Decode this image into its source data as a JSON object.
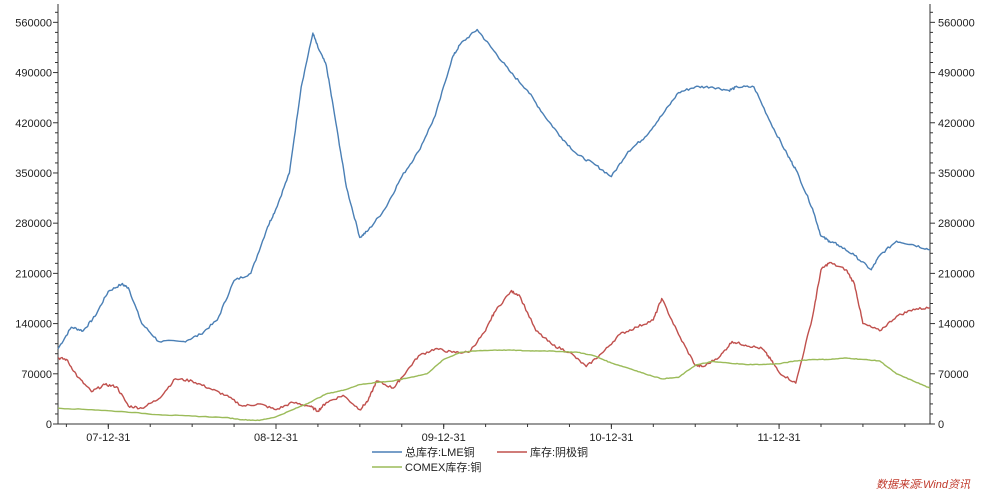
{
  "chart_data": {
    "type": "line",
    "title": "",
    "xlabel": "",
    "ylabel": "",
    "ylim": [
      0,
      580000
    ],
    "y_ticks": [
      0,
      70000,
      140000,
      210000,
      280000,
      350000,
      420000,
      490000,
      560000
    ],
    "x_ticks": [
      "07-12-31",
      "08-12-31",
      "09-12-31",
      "10-12-31",
      "11-12-31"
    ],
    "x_tick_positions": [
      2007.0,
      2008.0,
      2009.0,
      2010.0,
      2011.0
    ],
    "xlim": [
      2006.7,
      2011.9
    ],
    "grid": false,
    "legend_position": "bottom-center",
    "dual_axis": true,
    "series": [
      {
        "name": "总库存:LME铜",
        "color": "#4a7fb5",
        "x": [
          2006.7,
          2006.78,
          2006.85,
          2006.92,
          2007.0,
          2007.08,
          2007.12,
          2007.2,
          2007.3,
          2007.45,
          2007.55,
          2007.65,
          2007.75,
          2007.85,
          2007.95,
          2008.0,
          2008.08,
          2008.15,
          2008.22,
          2008.25,
          2008.3,
          2008.35,
          2008.42,
          2008.5,
          2008.55,
          2008.65,
          2008.75,
          2008.85,
          2008.95,
          2009.05,
          2009.1,
          2009.2,
          2009.3,
          2009.4,
          2009.5,
          2009.6,
          2009.7,
          2009.8,
          2009.9,
          2010.0,
          2010.1,
          2010.2,
          2010.3,
          2010.4,
          2010.5,
          2010.6,
          2010.7,
          2010.75,
          2010.85,
          2010.95,
          2011.05,
          2011.1,
          2011.2,
          2011.25,
          2011.3,
          2011.35,
          2011.45,
          2011.55,
          2011.6,
          2011.7,
          2011.8,
          2011.9
        ],
        "values": [
          105000,
          135000,
          130000,
          150000,
          185000,
          195000,
          190000,
          140000,
          115000,
          115000,
          125000,
          145000,
          200000,
          210000,
          275000,
          300000,
          350000,
          470000,
          545000,
          525000,
          500000,
          430000,
          330000,
          260000,
          270000,
          300000,
          345000,
          380000,
          430000,
          510000,
          530000,
          550000,
          520000,
          490000,
          465000,
          430000,
          400000,
          375000,
          362000,
          345000,
          380000,
          400000,
          430000,
          462000,
          470000,
          470000,
          465000,
          470000,
          470000,
          420000,
          375000,
          355000,
          300000,
          262000,
          255000,
          250000,
          235000,
          215000,
          235000,
          255000,
          250000,
          243000
        ]
      },
      {
        "name": "库存:阴极铜",
        "color": "#c0504d",
        "x": [
          2006.7,
          2006.75,
          2006.82,
          2006.9,
          2006.98,
          2007.05,
          2007.12,
          2007.2,
          2007.3,
          2007.4,
          2007.5,
          2007.6,
          2007.7,
          2007.8,
          2007.9,
          2008.0,
          2008.1,
          2008.2,
          2008.25,
          2008.3,
          2008.4,
          2008.5,
          2008.55,
          2008.6,
          2008.7,
          2008.75,
          2008.85,
          2008.95,
          2009.05,
          2009.15,
          2009.25,
          2009.3,
          2009.4,
          2009.45,
          2009.55,
          2009.65,
          2009.75,
          2009.85,
          2009.95,
          2010.05,
          2010.15,
          2010.25,
          2010.3,
          2010.4,
          2010.5,
          2010.55,
          2010.65,
          2010.72,
          2010.8,
          2010.9,
          2010.95,
          2011.0,
          2011.1,
          2011.2,
          2011.25,
          2011.3,
          2011.4,
          2011.45,
          2011.5,
          2011.6,
          2011.7,
          2011.8,
          2011.9
        ],
        "values": [
          92000,
          90000,
          65000,
          45000,
          55000,
          52000,
          25000,
          22000,
          35000,
          63000,
          60000,
          50000,
          40000,
          25000,
          28000,
          20000,
          30000,
          25000,
          18000,
          30000,
          40000,
          20000,
          33000,
          60000,
          50000,
          65000,
          95000,
          105000,
          100000,
          100000,
          130000,
          155000,
          185000,
          180000,
          130000,
          110000,
          100000,
          80000,
          100000,
          125000,
          135000,
          145000,
          175000,
          125000,
          82000,
          80000,
          95000,
          115000,
          110000,
          105000,
          90000,
          72000,
          57000,
          150000,
          215000,
          225000,
          215000,
          195000,
          140000,
          130000,
          150000,
          160000,
          162000
        ]
      },
      {
        "name": "COMEX库存:铜",
        "color": "#9bbb59",
        "x": [
          2006.7,
          2006.9,
          2007.1,
          2007.3,
          2007.5,
          2007.7,
          2007.8,
          2007.9,
          2008.0,
          2008.1,
          2008.2,
          2008.3,
          2008.4,
          2008.5,
          2008.6,
          2008.7,
          2008.8,
          2008.9,
          2009.0,
          2009.1,
          2009.2,
          2009.3,
          2009.4,
          2009.5,
          2009.6,
          2009.7,
          2009.8,
          2009.9,
          2010.0,
          2010.1,
          2010.2,
          2010.3,
          2010.4,
          2010.5,
          2010.6,
          2010.7,
          2010.8,
          2010.9,
          2011.0,
          2011.1,
          2011.2,
          2011.3,
          2011.4,
          2011.5,
          2011.6,
          2011.7,
          2011.8,
          2011.9
        ],
        "values": [
          22000,
          20000,
          17000,
          13000,
          11000,
          9000,
          6000,
          5000,
          10000,
          20000,
          30000,
          42000,
          47000,
          55000,
          58000,
          60000,
          65000,
          70000,
          90000,
          100000,
          102000,
          103000,
          103000,
          102000,
          102000,
          101000,
          100000,
          95000,
          85000,
          78000,
          70000,
          63000,
          65000,
          82000,
          87000,
          85000,
          83000,
          83000,
          84000,
          88000,
          90000,
          90000,
          92000,
          90000,
          88000,
          70000,
          60000,
          50000
        ]
      }
    ]
  },
  "legend": [
    {
      "label": "总库存:LME铜",
      "color": "#4a7fb5"
    },
    {
      "label": "库存:阴极铜",
      "color": "#c0504d"
    },
    {
      "label": "COMEX库存:铜",
      "color": "#9bbb59"
    }
  ],
  "source": "数据来源:Wind资讯"
}
